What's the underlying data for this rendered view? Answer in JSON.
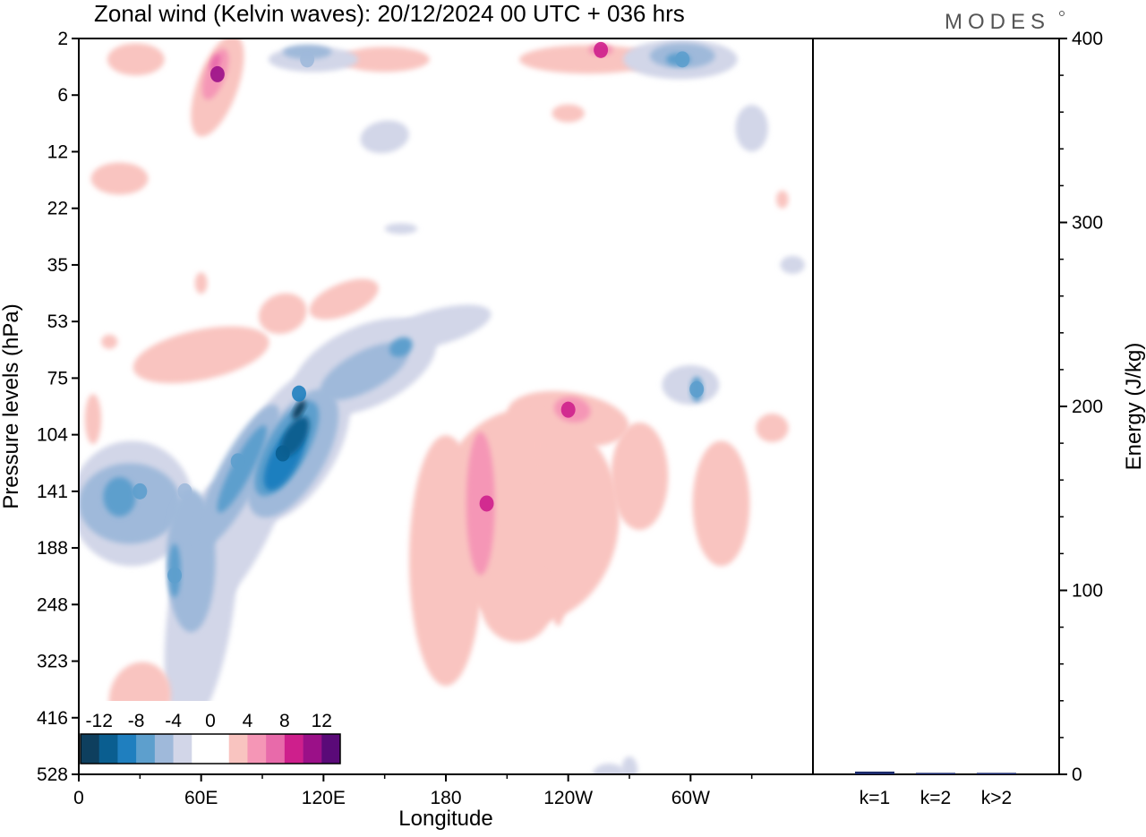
{
  "brand": "MODES",
  "chart_data": [
    {
      "type": "heatmap",
      "title": "Zonal wind (Kelvin waves):  20/12/2024  00 UTC  + 036 hrs",
      "xlabel": "Longitude",
      "ylabel": "Pressure levels (hPa)",
      "x_ticks": [
        "0",
        "60E",
        "120E",
        "180",
        "120W",
        "60W"
      ],
      "x_range_deg": [
        0,
        360
      ],
      "y_ticks": [
        "2",
        "6",
        "12",
        "22",
        "35",
        "53",
        "75",
        "104",
        "141",
        "188",
        "248",
        "323",
        "416",
        "528"
      ],
      "colorbar": {
        "labels": [
          "-12",
          "-8",
          "-4",
          "0",
          "4",
          "8",
          "12"
        ],
        "colors": [
          "#0e3f5e",
          "#0a5e90",
          "#1f7fbf",
          "#5d9fcd",
          "#9fb9da",
          "#d2d6e8",
          "#ffffff",
          "#ffffff",
          "#f9c4c0",
          "#f596b6",
          "#e86aaa",
          "#ce1f8c",
          "#9b1088",
          "#5a0a78"
        ]
      },
      "features": [
        {
          "lon": 30,
          "lev": 141,
          "value": -8
        },
        {
          "lon": 52,
          "lev": 141,
          "value": -6
        },
        {
          "lon": 47,
          "lev": 215,
          "value": -8
        },
        {
          "lon": 78,
          "lev": 120,
          "value": -8
        },
        {
          "lon": 100,
          "lev": 115,
          "value": -12
        },
        {
          "lon": 108,
          "lev": 82,
          "value": -10
        },
        {
          "lon": 200,
          "lev": 150,
          "value": 8
        },
        {
          "lon": 240,
          "lev": 90,
          "value": 8
        },
        {
          "lon": 303,
          "lev": 80,
          "value": -8
        },
        {
          "lon": 68,
          "lev": 4,
          "value": 10
        },
        {
          "lon": 112,
          "lev": 3,
          "value": -6
        },
        {
          "lon": 296,
          "lev": 3,
          "value": -8
        },
        {
          "lon": 256,
          "lev": 2.5,
          "value": 8
        }
      ]
    },
    {
      "type": "bar",
      "ylabel": "Energy (J/kg)",
      "categories": [
        "k=1",
        "k=2",
        "k>2"
      ],
      "values": [
        1.5,
        0.8,
        0.8
      ],
      "ylim": [
        0,
        400
      ],
      "y_ticks": [
        "0",
        "100",
        "200",
        "300",
        "400"
      ]
    }
  ]
}
